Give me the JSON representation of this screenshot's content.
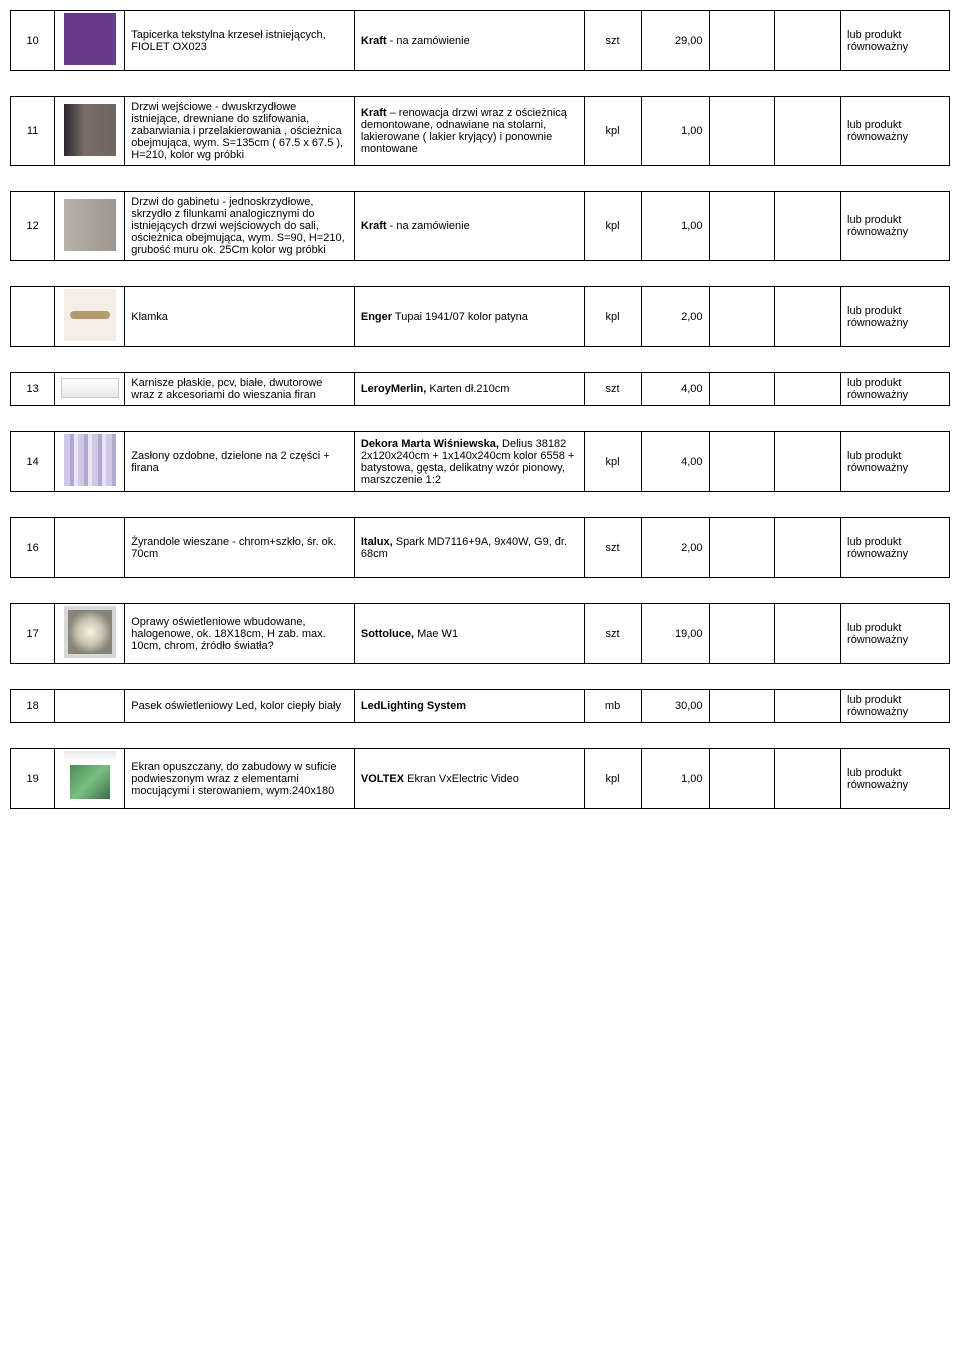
{
  "equiv_text": "lub produkt równoważny",
  "rows": [
    {
      "num": "10",
      "thumb_class": "thumb swatch-purple",
      "desc": "Tapicerka tekstylna krzeseł istniejących, FIOLET OX023",
      "spec_bold": "Kraft",
      "spec_rest": " - na zamówienie",
      "unit": "szt",
      "qty": "29,00"
    },
    {
      "num": "11",
      "thumb_class": "thumb swatch-door1",
      "desc": "Drzwi wejściowe - dwuskrzydłowe istniejące, drewniane do szlifowania, zabarwiania i przelakierowania , ościeżnica obejmująca, wym. S=135cm ( 67.5 x 67.5 ), H=210, kolor wg próbki",
      "spec_bold": "Kraft",
      "spec_rest": " – renowacja  drzwi wraz z ościeżnicą demontowane, odnawiane na stolarni, lakierowane ( lakier kryjący) i ponownie montowane",
      "unit": "kpl",
      "qty": "1,00"
    },
    {
      "num": "12",
      "thumb_class": "thumb swatch-door2",
      "desc": "Drzwi do gabinetu - jednoskrzydłowe,  skrzydło z filunkami analogicznymi do istniejących drzwi wejściowych do sali, ościeżnica obejmująca, wym. S=90, H=210, grubość muru ok. 25Cm kolor wg próbki",
      "spec_bold": "Kraft",
      "spec_rest": " - na zamówienie",
      "unit": "kpl",
      "qty": "1,00"
    },
    {
      "num": "",
      "thumb_class": "thumb swatch-handle",
      "desc": "Klamka",
      "spec_bold": "Enger",
      "spec_rest": "  Tupai 1941/07 kolor patyna",
      "unit": "kpl",
      "qty": "2,00"
    },
    {
      "num": "13",
      "thumb_class": "thumb-wide swatch-rail",
      "desc": "Karnisze płaskie, pcv, białe, dwutorowe wraz z  akcesoriami do wieszania firan",
      "spec_bold": "LeroyMerlin,",
      "spec_rest": " Karten dł.210cm",
      "unit": "szt",
      "qty": "4,00"
    },
    {
      "num": "14",
      "thumb_class": "thumb swatch-curtain",
      "desc": "Zasłony ozdobne, dzielone na 2 części + firana",
      "spec_bold": "Dekora Marta Wiśniewska,",
      "spec_rest": " Delius 38182 2x120x240cm + 1x140x240cm kolor 6558 + batystowa, gęsta, delikatny wzór pionowy, marszczenie 1:2",
      "unit": "kpl",
      "qty": "4,00"
    },
    {
      "num": "16",
      "thumb_class": "thumb swatch-chand",
      "desc": "Żyrandole wieszane  - chrom+szkło, śr. ok. 70cm",
      "spec_bold": "Italux,",
      "spec_rest": " Spark MD7116+9A, 9x40W, G9, đr. 68cm",
      "unit": "szt",
      "qty": "2,00"
    },
    {
      "num": "17",
      "thumb_class": "thumb swatch-spot",
      "desc": "Oprawy oświetleniowe wbudowane, halogenowe, ok. 18X18cm, H zab. max. 10cm, chrom, źródło światła?",
      "spec_bold": "Sottoluce,",
      "spec_rest": " Mae W1",
      "unit": "szt",
      "qty": "19,00"
    },
    {
      "num": "18",
      "thumb_class": "",
      "desc": "Pasek oświetleniowy Led, kolor ciepły biały",
      "spec_bold": "LedLighting System",
      "spec_rest": "",
      "unit": "mb",
      "qty": "30,00"
    },
    {
      "num": "19",
      "thumb_class": "thumb swatch-screen",
      "desc": "Ekran opuszczany, do zabudowy w suficie podwieszonym wraz z elementami mocującymi i sterowaniem, wym.240x180",
      "spec_bold": "VOLTEX",
      "spec_rest": " Ekran VxElectric Video",
      "unit": "kpl",
      "qty": "1,00"
    }
  ]
}
